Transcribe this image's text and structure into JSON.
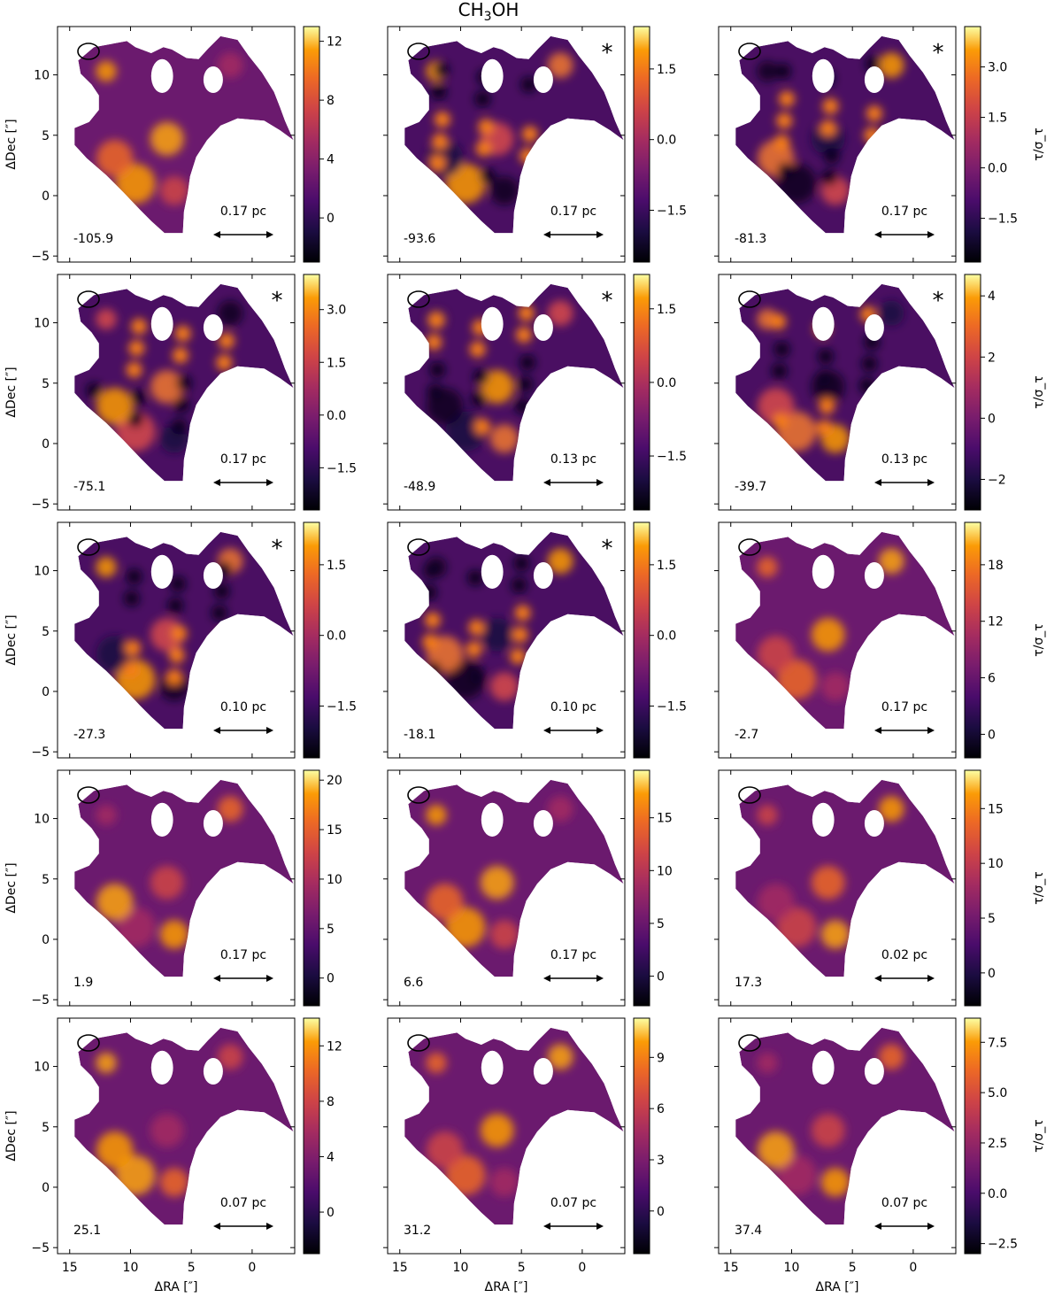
{
  "figure": {
    "title_main": "CH",
    "title_sub": "3",
    "title_tail": "OH"
  },
  "chart_data": {
    "type": "heatmap",
    "title": "CH3OH",
    "xlabel": "ΔRA [″]",
    "ylabel": "ΔDec [″]",
    "colorbar_label": "τ/σ_τ",
    "xlim": [
      16,
      -3.5
    ],
    "ylim": [
      -5.5,
      14
    ],
    "x_ticks": [
      "15",
      "10",
      "5",
      "0"
    ],
    "y_ticks": [
      "10",
      "5",
      "0",
      "−5"
    ],
    "colormap": "inferno",
    "mask_color": "#1fc0d0",
    "panels": [
      {
        "velocity": "-105.9",
        "scale": "0.17 pc",
        "asterisk": false,
        "cbar_range": [
          -3,
          13
        ],
        "cbar_ticks": [
          "12",
          "8",
          "4",
          "0"
        ],
        "cbar_tick_values": [
          12,
          8,
          4,
          0
        ]
      },
      {
        "velocity": "-93.6",
        "scale": "0.17 pc",
        "asterisk": true,
        "cbar_range": [
          -2.6,
          2.4
        ],
        "cbar_ticks": [
          "1.5",
          "0.0",
          "−1.5"
        ],
        "cbar_tick_values": [
          1.5,
          0,
          -1.5
        ]
      },
      {
        "velocity": "-81.3",
        "scale": "0.17 pc",
        "asterisk": true,
        "cbar_range": [
          -2.8,
          4.2
        ],
        "cbar_ticks": [
          "3.0",
          "1.5",
          "0.0",
          "−1.5"
        ],
        "cbar_tick_values": [
          3,
          1.5,
          0,
          -1.5
        ]
      },
      {
        "velocity": "-75.1",
        "scale": "0.17 pc",
        "asterisk": true,
        "cbar_range": [
          -2.7,
          4.0
        ],
        "cbar_ticks": [
          "3.0",
          "1.5",
          "0.0",
          "−1.5"
        ],
        "cbar_tick_values": [
          3,
          1.5,
          0,
          -1.5
        ]
      },
      {
        "velocity": "-48.9",
        "scale": "0.13 pc",
        "asterisk": true,
        "cbar_range": [
          -2.6,
          2.2
        ],
        "cbar_ticks": [
          "1.5",
          "0.0",
          "−1.5"
        ],
        "cbar_tick_values": [
          1.5,
          0,
          -1.5
        ]
      },
      {
        "velocity": "-39.7",
        "scale": "0.13 pc",
        "asterisk": true,
        "cbar_range": [
          -3.0,
          4.7
        ],
        "cbar_ticks": [
          "4",
          "2",
          "0",
          "−2"
        ],
        "cbar_tick_values": [
          4,
          2,
          0,
          -2
        ]
      },
      {
        "velocity": "-27.3",
        "scale": "0.10 pc",
        "asterisk": true,
        "cbar_range": [
          -2.6,
          2.4
        ],
        "cbar_ticks": [
          "1.5",
          "0.0",
          "−1.5"
        ],
        "cbar_tick_values": [
          1.5,
          0,
          -1.5
        ]
      },
      {
        "velocity": "-18.1",
        "scale": "0.10 pc",
        "asterisk": true,
        "cbar_range": [
          -2.6,
          2.4
        ],
        "cbar_ticks": [
          "1.5",
          "0.0",
          "−1.5"
        ],
        "cbar_tick_values": [
          1.5,
          0,
          -1.5
        ]
      },
      {
        "velocity": "-2.7",
        "scale": "0.17 pc",
        "asterisk": false,
        "cbar_range": [
          -2.5,
          22.5
        ],
        "cbar_ticks": [
          "18",
          "12",
          "6",
          "0"
        ],
        "cbar_tick_values": [
          18,
          12,
          6,
          0
        ]
      },
      {
        "velocity": "1.9",
        "scale": "0.17 pc",
        "asterisk": false,
        "cbar_range": [
          -2.8,
          21
        ],
        "cbar_ticks": [
          "20",
          "15",
          "10",
          "5",
          "0"
        ],
        "cbar_tick_values": [
          20,
          15,
          10,
          5,
          0
        ]
      },
      {
        "velocity": "6.6",
        "scale": "0.17 pc",
        "asterisk": false,
        "cbar_range": [
          -2.8,
          19.5
        ],
        "cbar_ticks": [
          "15",
          "10",
          "5",
          "0"
        ],
        "cbar_tick_values": [
          15,
          10,
          5,
          0
        ]
      },
      {
        "velocity": "17.3",
        "scale": "0.02 pc",
        "asterisk": false,
        "cbar_range": [
          -3,
          18.5
        ],
        "cbar_ticks": [
          "15",
          "10",
          "5",
          "0"
        ],
        "cbar_tick_values": [
          15,
          10,
          5,
          0
        ]
      },
      {
        "velocity": "25.1",
        "scale": "0.07 pc",
        "asterisk": false,
        "cbar_range": [
          -3,
          14
        ],
        "cbar_ticks": [
          "12",
          "8",
          "4",
          "0"
        ],
        "cbar_tick_values": [
          12,
          8,
          4,
          0
        ]
      },
      {
        "velocity": "31.2",
        "scale": "0.07 pc",
        "asterisk": false,
        "cbar_range": [
          -2.5,
          11.3
        ],
        "cbar_ticks": [
          "9",
          "6",
          "3",
          "0"
        ],
        "cbar_tick_values": [
          9,
          6,
          3,
          0
        ]
      },
      {
        "velocity": "37.4",
        "scale": "0.07 pc",
        "asterisk": false,
        "cbar_range": [
          -3,
          8.7
        ],
        "cbar_ticks": [
          "7.5",
          "5.0",
          "2.5",
          "0.0",
          "−2.5"
        ],
        "cbar_tick_values": [
          7.5,
          5,
          2.5,
          0,
          -2.5
        ]
      }
    ]
  }
}
